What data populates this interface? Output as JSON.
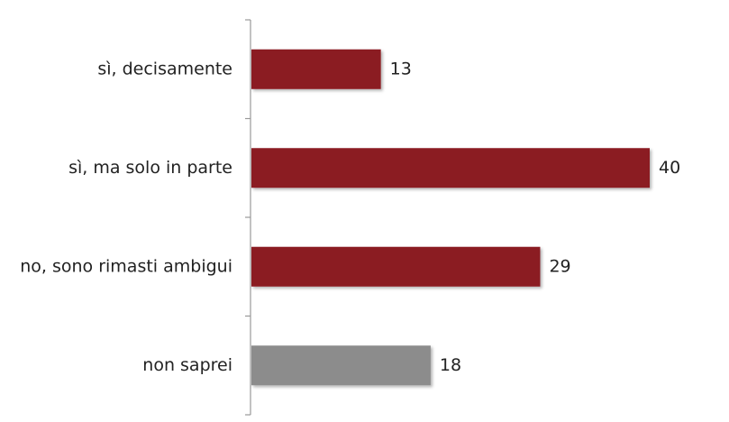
{
  "chart_data": {
    "type": "bar",
    "orientation": "horizontal",
    "categories": [
      "sì, decisamente",
      "sì, ma solo in parte",
      "no, sono rimasti ambigui",
      "non saprei"
    ],
    "values": [
      13,
      40,
      29,
      18
    ],
    "colors": [
      "#8b1a22",
      "#8b1a22",
      "#8b1a22",
      "#8c8c8c"
    ]
  }
}
